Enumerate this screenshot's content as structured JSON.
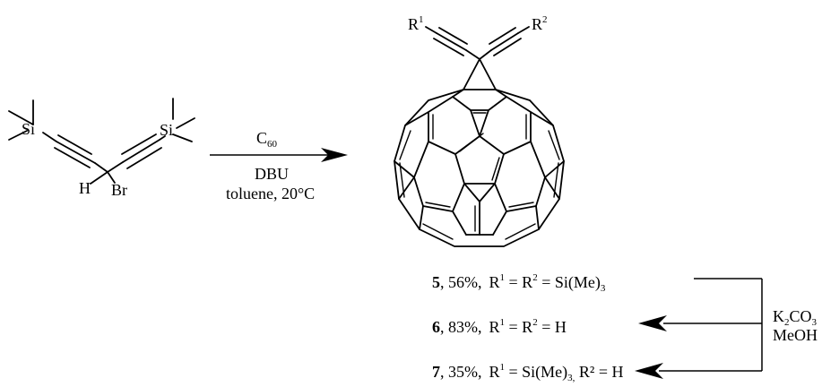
{
  "reagent": {
    "atoms": {
      "si_left": "Si",
      "si_right": "Si",
      "h": "H",
      "br": "Br"
    }
  },
  "conditions": {
    "above_main": "C",
    "above_sub": "60",
    "below_line1": "DBU",
    "below_line2": "toluene, 20°C"
  },
  "product": {
    "r1": {
      "main": "R",
      "sup": "1"
    },
    "r2": {
      "main": "R",
      "sup": "2"
    }
  },
  "compounds": [
    {
      "num": "5",
      "yield": ", 56%,",
      "r1": "R",
      "r1_sup": "1",
      "eq1": " = R",
      "r2_sup": "2",
      "rest": " = Si(Me)",
      "rest_sub": "3",
      "tail": ""
    },
    {
      "num": "6",
      "yield": ", 83%,",
      "r1": "R",
      "r1_sup": "1",
      "eq1": " = R",
      "r2_sup": "2",
      "rest": " = H",
      "rest_sub": "",
      "tail": ""
    },
    {
      "num": "7",
      "yield": ", 35%,",
      "r1": "R",
      "r1_sup": "1",
      "eq1": " = Si(Me)",
      "r2_sup": "",
      "rest": "",
      "rest_sub": "3,",
      "tail": " R² = H"
    }
  ],
  "deprotection": {
    "reagent_main": "K",
    "reagent_sub1": "2",
    "reagent_mid": "CO",
    "reagent_sub2": "3",
    "solvent": "MeOH"
  }
}
